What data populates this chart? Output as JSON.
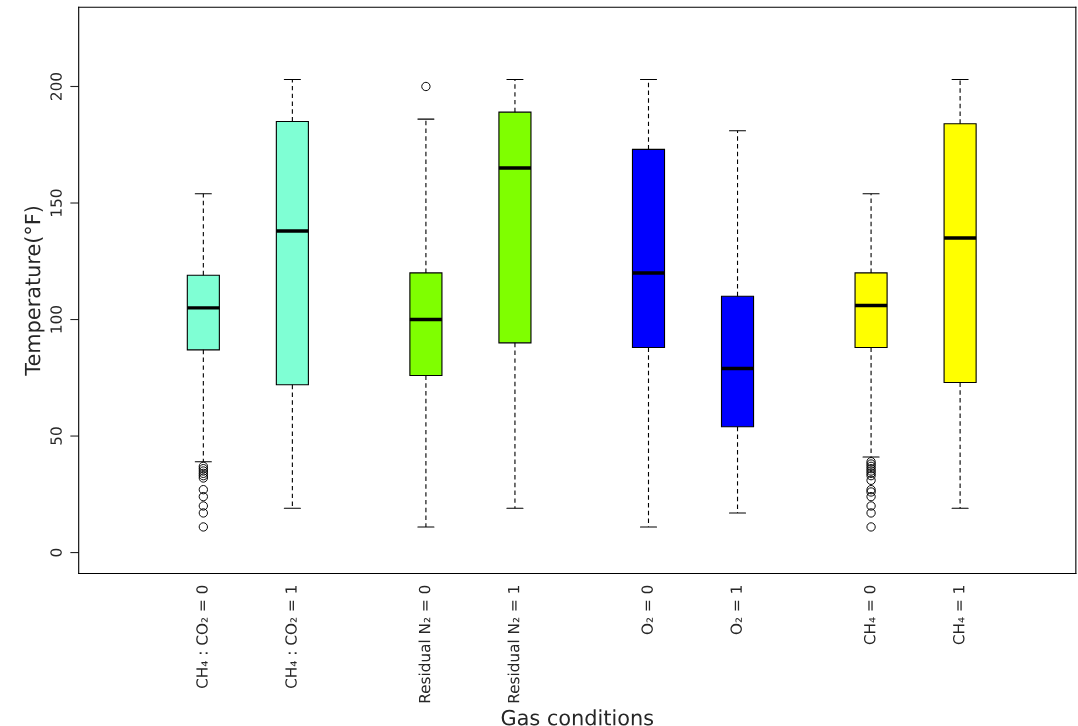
{
  "chart_data": {
    "type": "box",
    "xlabel": "Gas conditions",
    "ylabel": "Temperature(°F)",
    "categories": [
      "CH₄ : CO₂ = 0",
      "CH₄ : CO₂ = 1",
      "Residual N₂ = 0",
      "Residual N₂ = 1",
      "O₂ = 0",
      "O₂ = 1",
      "CH₄ = 0",
      "CH₄ = 1"
    ],
    "colors": [
      "#7fffd4",
      "#7fffd4",
      "#7fff00",
      "#7fff00",
      "#0000ff",
      "#0000ff",
      "#ffff00",
      "#ffff00"
    ],
    "boxes": [
      {
        "low": 39,
        "q1": 87,
        "median": 105,
        "q3": 119,
        "high": 154,
        "outliers": [
          37,
          36,
          35,
          34,
          33,
          32,
          27,
          24,
          20,
          17,
          11
        ]
      },
      {
        "low": 19,
        "q1": 72,
        "median": 138,
        "q3": 185,
        "high": 203
      },
      {
        "low": 11,
        "q1": 76,
        "median": 100,
        "q3": 120,
        "high": 186,
        "outliers": [
          200
        ]
      },
      {
        "low": 19,
        "q1": 90,
        "median": 165,
        "q3": 189,
        "high": 203
      },
      {
        "low": 11,
        "q1": 88,
        "median": 120,
        "q3": 173,
        "high": 203
      },
      {
        "low": 17,
        "q1": 54,
        "median": 79,
        "q3": 110,
        "high": 181
      },
      {
        "low": 41,
        "q1": 88,
        "median": 106,
        "q3": 120,
        "high": 154,
        "outliers": [
          39,
          38,
          37,
          36,
          35,
          34,
          33,
          31,
          27,
          26,
          24,
          20,
          17,
          11
        ]
      },
      {
        "low": 19,
        "q1": 73,
        "median": 135,
        "q3": 184,
        "high": 203
      }
    ],
    "ylim": [
      -9,
      234
    ],
    "yticks": [
      0,
      50,
      100,
      150,
      200
    ],
    "grid": false
  }
}
